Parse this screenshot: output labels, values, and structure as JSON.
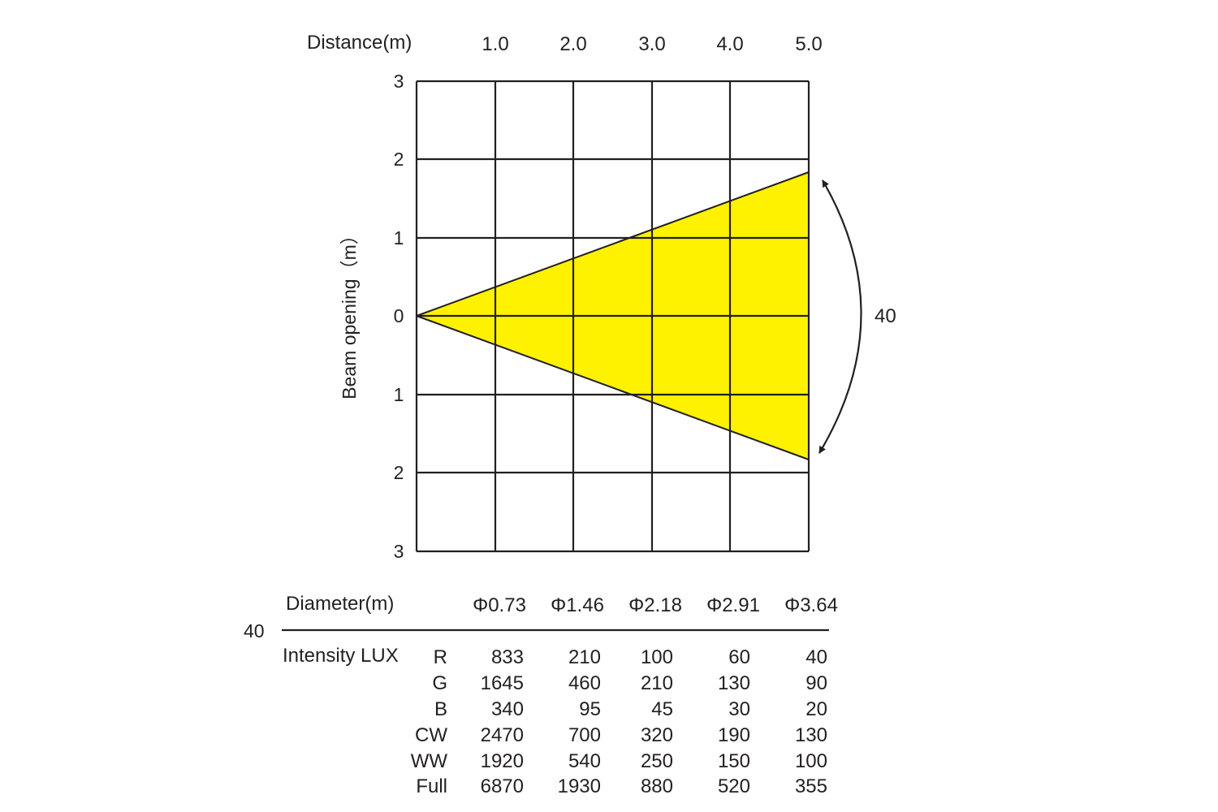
{
  "diagram": {
    "distance_label": "Distance(m)",
    "distances": [
      "1.0",
      "2.0",
      "3.0",
      "4.0",
      "5.0"
    ],
    "beam_axis_label": "Beam opening（m）",
    "beam_ticks": [
      "3",
      "2",
      "1",
      "0",
      "1",
      "2",
      "3"
    ],
    "beam_color": "#fff200",
    "angle_label": "40"
  },
  "table": {
    "beam_angle": "40",
    "diameter_label": "Diameter(m)",
    "diameters": [
      "Φ0.73",
      "Φ1.46",
      "Φ2.18",
      "Φ2.91",
      "Φ3.64"
    ],
    "intensity_label": "Intensity LUX",
    "rows": [
      {
        "channel": "R",
        "values": [
          "833",
          "210",
          "100",
          "60",
          "40"
        ]
      },
      {
        "channel": "G",
        "values": [
          "1645",
          "460",
          "210",
          "130",
          "90"
        ]
      },
      {
        "channel": "B",
        "values": [
          "340",
          "95",
          "45",
          "30",
          "20"
        ]
      },
      {
        "channel": "CW",
        "values": [
          "2470",
          "700",
          "320",
          "190",
          "130"
        ]
      },
      {
        "channel": "WW",
        "values": [
          "1920",
          "540",
          "250",
          "150",
          "100"
        ]
      },
      {
        "channel": "Full",
        "values": [
          "6870",
          "1930",
          "880",
          "520",
          "355"
        ]
      }
    ]
  }
}
